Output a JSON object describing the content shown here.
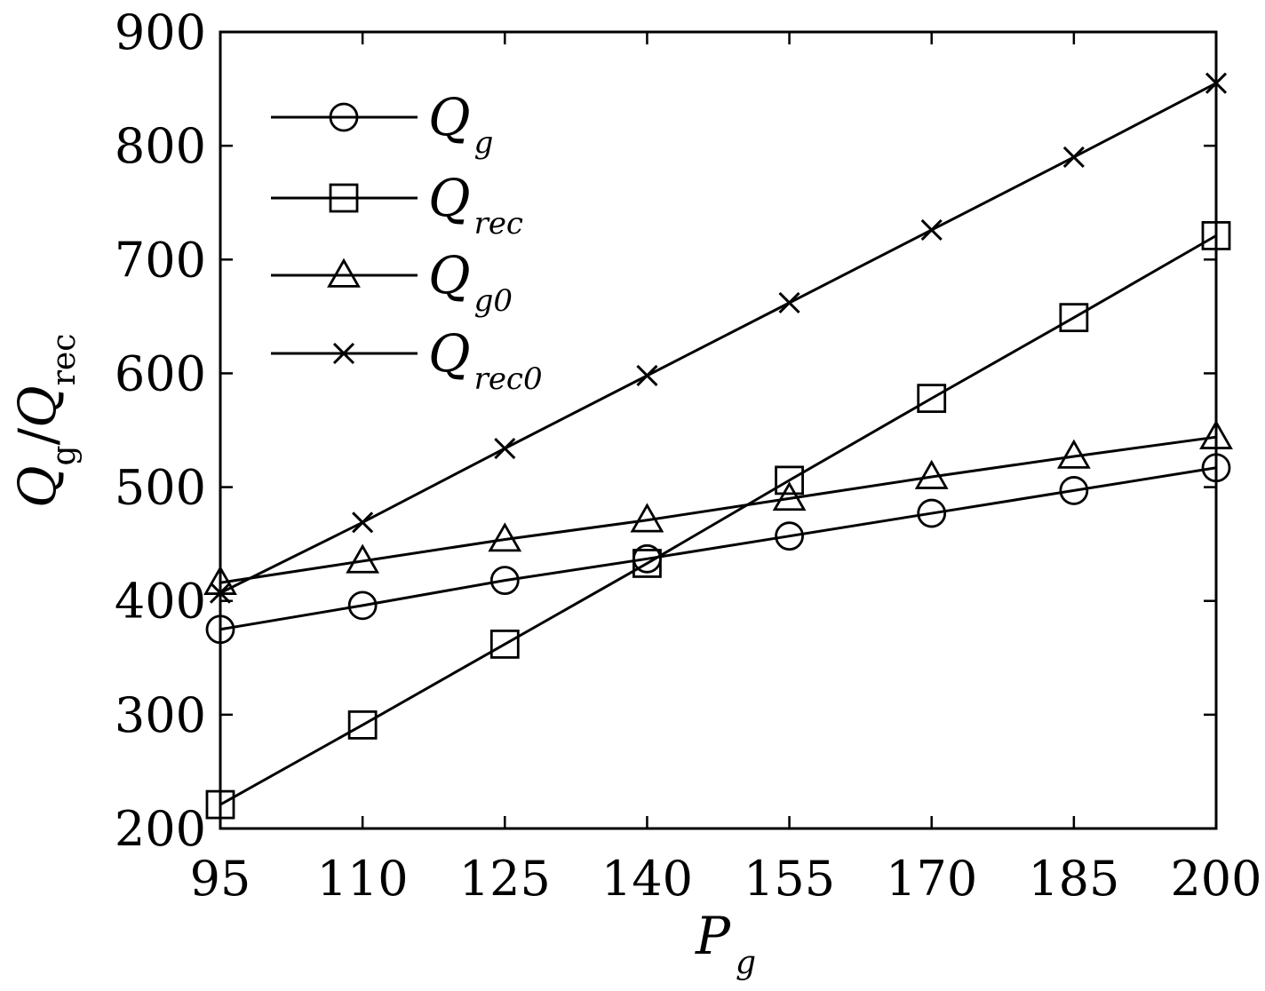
{
  "chart_data": {
    "type": "line",
    "x": [
      95,
      110,
      125,
      140,
      155,
      170,
      185,
      200
    ],
    "xlim": [
      95,
      200
    ],
    "ylim": [
      200,
      900
    ],
    "xticks": [
      95,
      110,
      125,
      140,
      155,
      170,
      185,
      200
    ],
    "yticks": [
      200,
      300,
      400,
      500,
      600,
      700,
      800,
      900
    ],
    "xlabel": {
      "main": "P",
      "sub": "g"
    },
    "ylabel": {
      "q1": "Q",
      "sub1": "g",
      "slash": "/",
      "q2": "Q",
      "sub2": "rec"
    },
    "grid": false,
    "legend_position": "top-left",
    "color": "#000000",
    "series": [
      {
        "name": "Q",
        "name_sub": "g",
        "marker": "circle",
        "values": [
          375,
          396,
          418,
          437,
          457,
          477,
          497,
          517
        ]
      },
      {
        "name": "Q",
        "name_sub": "rec",
        "marker": "square",
        "values": [
          221,
          291,
          362,
          433,
          506,
          578,
          649,
          721
        ]
      },
      {
        "name": "Q",
        "name_sub": "g0",
        "marker": "triangle",
        "values": [
          416,
          435,
          454,
          471,
          490,
          509,
          527,
          544
        ]
      },
      {
        "name": "Q",
        "name_sub": "rec0",
        "marker": "x",
        "values": [
          407,
          469,
          534,
          598,
          662,
          726,
          790,
          855
        ]
      }
    ]
  }
}
